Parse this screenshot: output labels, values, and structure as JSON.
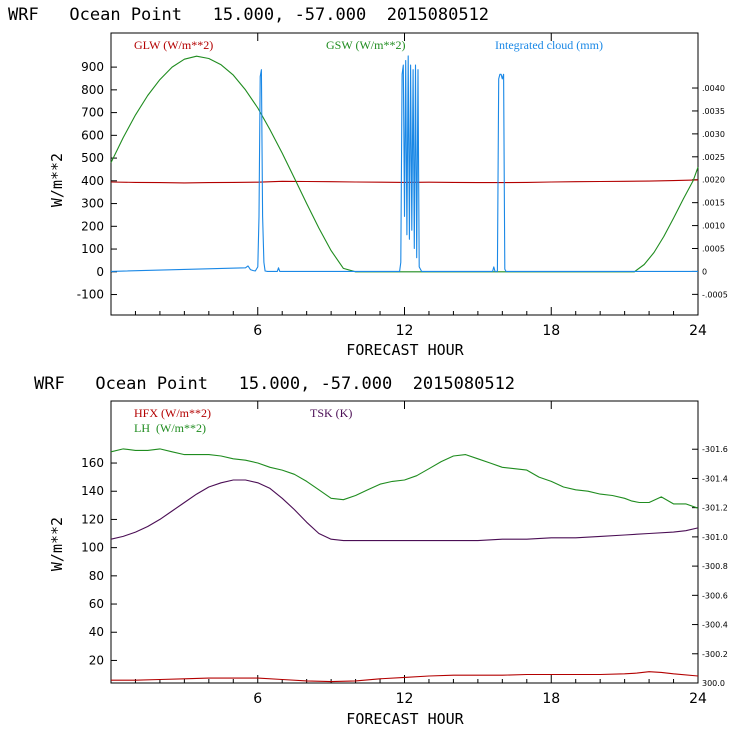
{
  "chart_data": [
    {
      "type": "line",
      "title": "WRF   Ocean Point   15.000, -57.000  2015080512",
      "xlabel": "FORECAST HOUR",
      "ylabel": "W/m**2",
      "xlim": [
        0,
        24
      ],
      "ylim": [
        -190,
        1050
      ],
      "x_ticks": [
        "6",
        "12",
        "18",
        "24"
      ],
      "y_ticks": [
        "-100",
        "0",
        "100",
        "200",
        "300",
        "400",
        "500",
        "600",
        "700",
        "800",
        "900"
      ],
      "y_tick_values": [
        -100,
        0,
        100,
        200,
        300,
        400,
        500,
        600,
        700,
        800,
        900
      ],
      "right_axis": {
        "label": "Integrated cloud (mm)",
        "ticks": [
          "-.0005",
          "0",
          ".0005",
          ".0010",
          ".0015",
          ".0020",
          ".0025",
          ".0030",
          ".0035",
          ".0040"
        ],
        "tick_values": [
          -0.0005,
          0,
          0.0005,
          0.001,
          0.0015,
          0.002,
          0.0025,
          0.003,
          0.0035,
          0.004
        ],
        "ylim": [
          -0.00095,
          0.0052
        ]
      },
      "legend": [
        {
          "name": "GLW (W/m**2)",
          "color": "#b30000"
        },
        {
          "name": "GSW (W/m**2)",
          "color": "#1f8c1f"
        },
        {
          "name": "Integrated cloud (mm)",
          "color": "#1a88e6"
        }
      ],
      "series": [
        {
          "name": "GLW",
          "color": "#b30000",
          "axis": "left",
          "x": [
            0,
            1,
            2,
            3,
            4,
            5,
            6,
            7,
            8,
            9,
            10,
            11,
            12,
            13,
            14,
            15,
            16,
            17,
            18,
            19,
            20,
            21,
            22,
            23,
            24
          ],
          "y": [
            395,
            393,
            392,
            391,
            392,
            393,
            394,
            398,
            397,
            396,
            395,
            394,
            393,
            394,
            393,
            392,
            392,
            393,
            395,
            396,
            397,
            398,
            399,
            401,
            404
          ]
        },
        {
          "name": "GSW",
          "color": "#1f8c1f",
          "axis": "left",
          "x": [
            0,
            0.5,
            1,
            1.5,
            2,
            2.5,
            3,
            3.5,
            4,
            4.5,
            5,
            5.5,
            6,
            6.5,
            7,
            7.5,
            8,
            8.5,
            9,
            9.5,
            10,
            10.2,
            11,
            12,
            13,
            14,
            15,
            16,
            17,
            18,
            19,
            20,
            21,
            21.4,
            21.8,
            22.2,
            22.6,
            23,
            23.4,
            23.8,
            24
          ],
          "y": [
            480,
            590,
            690,
            775,
            845,
            900,
            935,
            948,
            938,
            910,
            865,
            800,
            720,
            625,
            522,
            412,
            300,
            192,
            93,
            15,
            0,
            0,
            0,
            0,
            0,
            0,
            0,
            0,
            0,
            0,
            0,
            0,
            0,
            0,
            32,
            85,
            155,
            235,
            320,
            400,
            460
          ]
        },
        {
          "name": "Integrated cloud",
          "color": "#1a88e6",
          "axis": "right",
          "x": [
            0,
            5.5,
            5.6,
            5.7,
            5.8,
            5.9,
            6.0,
            6.05,
            6.1,
            6.15,
            6.2,
            6.25,
            6.3,
            6.4,
            6.8,
            6.85,
            6.9,
            11.8,
            11.85,
            11.9,
            11.95,
            12.0,
            12.05,
            12.1,
            12.15,
            12.2,
            12.25,
            12.3,
            12.35,
            12.4,
            12.45,
            12.5,
            12.55,
            12.6,
            12.7,
            15.6,
            15.65,
            15.7,
            15.8,
            15.85,
            15.9,
            15.95,
            16.0,
            16.05,
            16.1,
            16.15,
            16.2,
            24
          ],
          "y": [
            0,
            8e-05,
            0.00012,
            4e-05,
            2e-05,
            1e-05,
            0.0001,
            0.0012,
            0.00425,
            0.0044,
            0.0012,
            0.0002,
            1e-05,
            0,
            0,
            8e-05,
            0,
            0,
            0.0002,
            0.0043,
            0.0045,
            0.0012,
            0.0046,
            0.0008,
            0.0047,
            0.0007,
            0.0045,
            0.0009,
            0.0044,
            0.0005,
            0.0045,
            0.0003,
            0.0044,
            0.0001,
            0,
            0,
            0.0001,
            0,
            0,
            0.0042,
            0.0043,
            0.0043,
            0.0042,
            0.0043,
            5e-05,
            0,
            0,
            0
          ]
        }
      ]
    },
    {
      "type": "line",
      "title": "WRF   Ocean Point   15.000, -57.000  2015080512",
      "xlabel": "FORECAST HOUR",
      "ylabel": "W/m**2",
      "xlim": [
        0,
        24
      ],
      "ylim": [
        4,
        204
      ],
      "x_ticks": [
        "6",
        "12",
        "18",
        "24"
      ],
      "y_ticks": [
        "20",
        "40",
        "60",
        "80",
        "100",
        "120",
        "140",
        "160"
      ],
      "y_tick_values": [
        20,
        40,
        60,
        80,
        100,
        120,
        140,
        160
      ],
      "right_axis": {
        "label": "TSK (K)",
        "ticks": [
          "300.0",
          "-300.2",
          "-300.4",
          "-300.6",
          "-300.8",
          "-301.0",
          "-301.2",
          "-301.4",
          "-301.6"
        ],
        "tick_values": [
          300.0,
          300.2,
          300.4,
          300.6,
          300.8,
          301.0,
          301.2,
          301.4,
          301.6
        ],
        "ylim": [
          300.0,
          301.93
        ]
      },
      "legend": [
        {
          "name": "HFX (W/m**2)",
          "color": "#b30000"
        },
        {
          "name": "LH  (W/m**2)",
          "color": "#1f8c1f"
        },
        {
          "name": "TSK (K)",
          "color": "#4b0e55"
        }
      ],
      "series": [
        {
          "name": "HFX",
          "color": "#b30000",
          "axis": "left",
          "x": [
            0,
            1,
            2,
            3,
            4,
            5,
            6,
            7,
            8,
            9,
            10,
            11,
            12,
            13,
            14,
            15,
            16,
            17,
            18,
            19,
            20,
            21,
            21.5,
            22,
            22.5,
            23,
            24
          ],
          "y": [
            6,
            6,
            6.5,
            7,
            7.5,
            7.5,
            7.5,
            6.5,
            5.5,
            5,
            5.5,
            7,
            8,
            9,
            9.5,
            9.5,
            9.5,
            10,
            10,
            10,
            10,
            10.5,
            11,
            12,
            11.5,
            10.5,
            9
          ]
        },
        {
          "name": "LH",
          "color": "#1f8c1f",
          "axis": "left",
          "x": [
            0,
            0.5,
            1,
            1.5,
            2,
            2.5,
            3,
            3.5,
            4,
            4.5,
            5,
            5.5,
            6,
            6.5,
            7,
            7.5,
            8,
            8.5,
            9,
            9.5,
            10,
            10.5,
            11,
            11.5,
            12,
            12.5,
            13,
            13.5,
            14,
            14.5,
            15,
            15.5,
            16,
            16.5,
            17,
            17.5,
            18,
            18.5,
            19,
            19.5,
            20,
            20.5,
            21,
            21.3,
            21.6,
            22,
            22.5,
            23,
            23.5,
            24
          ],
          "y": [
            168,
            170,
            169,
            169,
            170,
            168,
            166,
            166,
            166,
            165,
            163,
            162,
            160,
            157,
            155,
            152,
            147,
            141,
            135,
            134,
            137,
            141,
            145,
            147,
            148,
            151,
            156,
            161,
            165,
            166,
            163,
            160,
            157,
            156,
            155,
            150,
            147,
            143,
            141,
            140,
            138,
            137,
            135,
            133,
            132,
            132,
            136,
            131,
            131,
            128
          ]
        },
        {
          "name": "TSK",
          "color": "#4b0e55",
          "axis": "left",
          "x": [
            0,
            0.5,
            1,
            1.5,
            2,
            2.5,
            3,
            3.5,
            4,
            4.5,
            5,
            5.5,
            6,
            6.5,
            7,
            7.5,
            8,
            8.5,
            9,
            9.5,
            10,
            11,
            12,
            13,
            14,
            15,
            16,
            17,
            18,
            19,
            20,
            21,
            22,
            23,
            23.5,
            24
          ],
          "y": [
            106,
            108,
            111,
            115,
            120,
            126,
            132,
            138,
            143,
            146,
            148,
            148,
            146,
            142,
            135,
            127,
            118,
            110,
            106,
            105,
            105,
            105,
            105,
            105,
            105,
            105,
            106,
            106,
            107,
            107,
            108,
            109,
            110,
            111,
            112,
            114
          ]
        }
      ]
    }
  ]
}
